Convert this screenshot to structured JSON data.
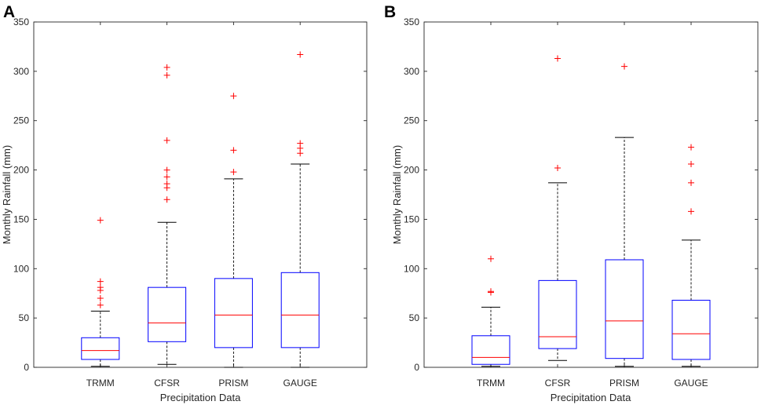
{
  "colors": {
    "box": "#0000ff",
    "median": "#ff0000",
    "whisker": "#000000",
    "outlier": "#ff0000"
  },
  "chart_data": [
    {
      "type": "box",
      "panel": "A",
      "xlabel": "Precipitation Data",
      "ylabel": "Monthly Rainfall (mm)",
      "ylim": [
        0,
        350
      ],
      "yticks": [
        0,
        50,
        100,
        150,
        200,
        250,
        300,
        350
      ],
      "yticklabels": [
        "0",
        "50",
        "100",
        "150",
        "200",
        "250",
        "300",
        "350"
      ],
      "categories": [
        "TRMM",
        "CFSR",
        "PRISM",
        "GAUGE"
      ],
      "boxes": [
        {
          "name": "TRMM",
          "min": 1,
          "q1": 8,
          "median": 17,
          "q3": 30,
          "max": 57,
          "outliers": [
            63,
            70,
            78,
            81,
            87,
            149
          ]
        },
        {
          "name": "CFSR",
          "min": 3,
          "q1": 26,
          "median": 45,
          "q3": 81,
          "max": 147,
          "outliers": [
            170,
            182,
            186,
            193,
            200,
            230,
            296,
            304
          ]
        },
        {
          "name": "PRISM",
          "min": 0,
          "q1": 20,
          "median": 53,
          "q3": 90,
          "max": 191,
          "outliers": [
            198,
            220,
            275
          ]
        },
        {
          "name": "GAUGE",
          "min": 0,
          "q1": 20,
          "median": 53,
          "q3": 96,
          "max": 206,
          "outliers": [
            217,
            222,
            227,
            317
          ]
        }
      ]
    },
    {
      "type": "box",
      "panel": "B",
      "xlabel": "Precipitation Data",
      "ylabel": "Monthly Rainfall (mm)",
      "ylim": [
        0,
        350
      ],
      "yticks": [
        0,
        50,
        100,
        150,
        200,
        250,
        300,
        350
      ],
      "yticklabels": [
        "0",
        "50",
        "100",
        "150",
        "200",
        "250",
        "300",
        "350"
      ],
      "categories": [
        "TRMM",
        "CFSR",
        "PRISM",
        "GAUGE"
      ],
      "boxes": [
        {
          "name": "TRMM",
          "min": 1,
          "q1": 3,
          "median": 10,
          "q3": 32,
          "max": 61,
          "outliers": [
            76,
            77,
            110
          ]
        },
        {
          "name": "CFSR",
          "min": 7,
          "q1": 19,
          "median": 31,
          "q3": 88,
          "max": 187,
          "outliers": [
            202,
            313
          ]
        },
        {
          "name": "PRISM",
          "min": 1,
          "q1": 9,
          "median": 47,
          "q3": 109,
          "max": 233,
          "outliers": [
            305
          ]
        },
        {
          "name": "GAUGE",
          "min": 1,
          "q1": 8,
          "median": 34,
          "q3": 68,
          "max": 129,
          "outliers": [
            158,
            187,
            206,
            223
          ]
        }
      ]
    }
  ]
}
